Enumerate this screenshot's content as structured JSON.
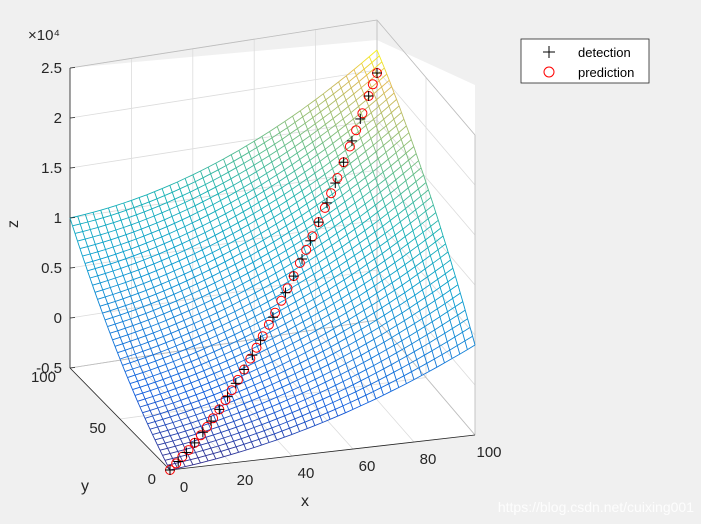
{
  "chart_data": {
    "type": "surface3d+scatter3d",
    "title": "",
    "xlabel": "x",
    "ylabel": "y",
    "zlabel": "z",
    "x_ticks": [
      "0",
      "20",
      "40",
      "60",
      "80",
      "100"
    ],
    "y_ticks": [
      "0",
      "50",
      "100"
    ],
    "z_ticks": [
      "-0.5",
      "0",
      "0.5",
      "1",
      "1.5",
      "2",
      "2.5"
    ],
    "z_exponent": "×10⁴",
    "xlim": [
      0,
      100
    ],
    "ylim": [
      0,
      100
    ],
    "zlim": [
      -5000,
      25000
    ],
    "grid": true,
    "legend_position": "top-right",
    "surface": {
      "colormap": "parula",
      "grid_size": 41,
      "corner_values": {
        "x0_y0": -5000,
        "x100_y0": 4000,
        "x0_y100": 10000,
        "x100_y100": 22000
      }
    },
    "series": [
      {
        "name": "detection",
        "marker": "+",
        "color": "#000000",
        "points": [
          [
            0,
            0,
            -5000
          ],
          [
            4,
            4,
            -4700
          ],
          [
            8,
            8,
            -4350
          ],
          [
            12,
            12,
            -3950
          ],
          [
            16,
            16,
            -3450
          ],
          [
            20,
            20,
            -2900
          ],
          [
            24,
            24,
            -2300
          ],
          [
            28,
            28,
            -1600
          ],
          [
            32,
            32,
            -850
          ],
          [
            36,
            36,
            -50
          ],
          [
            40,
            40,
            800
          ],
          [
            44,
            44,
            1700
          ],
          [
            50,
            50,
            3100
          ],
          [
            56,
            56,
            4650
          ],
          [
            60,
            60,
            5700
          ],
          [
            64,
            64,
            6800
          ],
          [
            68,
            68,
            8000
          ],
          [
            72,
            72,
            9250
          ],
          [
            76,
            76,
            10550
          ],
          [
            80,
            80,
            11900
          ],
          [
            84,
            84,
            13350
          ],
          [
            88,
            88,
            14850
          ],
          [
            92,
            92,
            16400
          ],
          [
            96,
            96,
            18050
          ],
          [
            100,
            100,
            19700
          ]
        ]
      },
      {
        "name": "prediction",
        "marker": "o",
        "color": "#ff0000",
        "points": [
          [
            0,
            0,
            -5000
          ],
          [
            3,
            3,
            -4750
          ],
          [
            6,
            6,
            -4500
          ],
          [
            9,
            9,
            -4250
          ],
          [
            12,
            12,
            -3950
          ],
          [
            15,
            15,
            -3600
          ],
          [
            18,
            18,
            -3200
          ],
          [
            21,
            21,
            -2750
          ],
          [
            24,
            24,
            -2300
          ],
          [
            27,
            27,
            -1800
          ],
          [
            30,
            30,
            -1250
          ],
          [
            33,
            33,
            -650
          ],
          [
            36,
            36,
            -50
          ],
          [
            39,
            39,
            600
          ],
          [
            42,
            42,
            1250
          ],
          [
            45,
            45,
            1950
          ],
          [
            48,
            48,
            2650
          ],
          [
            51,
            51,
            3400
          ],
          [
            54,
            54,
            4150
          ],
          [
            57,
            57,
            4950
          ],
          [
            60,
            60,
            5700
          ],
          [
            63,
            63,
            6550
          ],
          [
            66,
            66,
            7400
          ],
          [
            69,
            69,
            8300
          ],
          [
            72,
            72,
            9250
          ],
          [
            75,
            75,
            10200
          ],
          [
            78,
            78,
            11200
          ],
          [
            81,
            81,
            12250
          ],
          [
            84,
            84,
            13350
          ],
          [
            87,
            87,
            14450
          ],
          [
            90,
            90,
            15600
          ],
          [
            93,
            93,
            16800
          ],
          [
            96,
            96,
            18050
          ],
          [
            98,
            98,
            18900
          ],
          [
            100,
            100,
            19700
          ]
        ]
      }
    ]
  },
  "watermark": "https://blog.csdn.net/cuixing001"
}
